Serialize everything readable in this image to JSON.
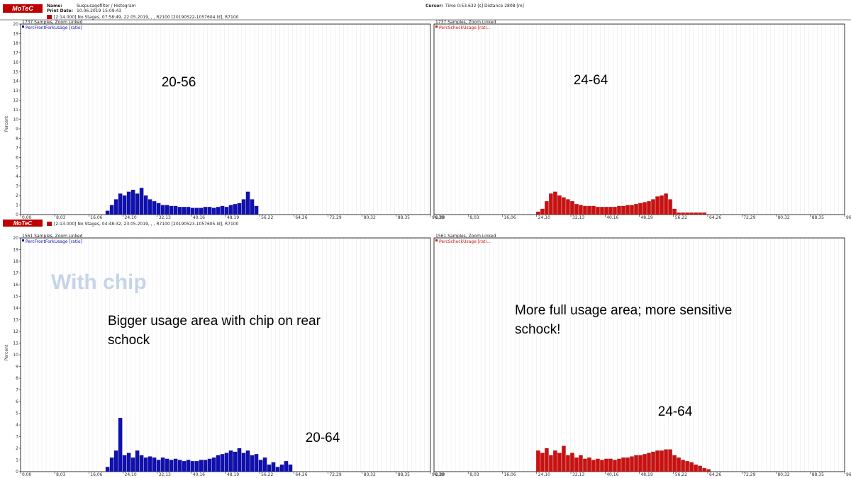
{
  "header": {
    "logo": "MoTeC",
    "name_label": "Name:",
    "name_value": "Suspusagefilter / Histogram",
    "print_label": "Print Date:",
    "print_value": "10.06.2019 15:09:43",
    "cursor_label": "Cursor:",
    "cursor_value": "Time  0:53.632 [s]   Distance  2808 [m]",
    "session_top": "[2:14.000] No Stages, 07:58:49, 22.05.2019, , , R2100 [20190522-1057604.ld], R7100",
    "session_bottom": "[2:13.000] No Stages, 04:48:32, 23.05.2019, , , R7100 [20190523-1057605.ld], R7100"
  },
  "ylabel": "Percent",
  "colors": {
    "front": "#1010b0",
    "rear": "#cc1010",
    "watermark": "#c6d4ea"
  },
  "annotations": {
    "top_left": "20-56",
    "top_right": "24-64",
    "watermark": "With chip",
    "bottom_left_note": [
      "Bigger usage area with chip on rear",
      "schock"
    ],
    "bottom_left_range": "20-64",
    "bottom_right_note": [
      "More full usage area; more sensitive",
      "schock!"
    ],
    "bottom_right_range": "24-64"
  },
  "chart_data": [
    {
      "type": "bar",
      "samples_note": "1737 Samples, Zoom Linked",
      "series": [
        {
          "name": "PercFrontForkUsage [ratio]",
          "color": "#1010b0",
          "x": [
            20,
            21,
            22,
            23,
            24,
            25,
            26,
            27,
            28,
            29,
            30,
            31,
            32,
            33,
            34,
            35,
            36,
            37,
            38,
            39,
            40,
            41,
            42,
            43,
            44,
            45,
            46,
            47,
            48,
            49,
            50,
            51,
            52,
            53,
            54,
            55
          ],
          "values": [
            0.4,
            1.0,
            1.6,
            2.2,
            2.0,
            2.4,
            2.6,
            2.2,
            2.8,
            2.0,
            1.6,
            1.4,
            1.2,
            1.0,
            1.0,
            0.9,
            0.9,
            0.8,
            0.8,
            0.8,
            0.7,
            0.7,
            0.7,
            0.8,
            0.8,
            0.7,
            0.8,
            0.9,
            0.8,
            1.0,
            1.1,
            1.2,
            1.6,
            2.4,
            1.6,
            0.9
          ]
        }
      ],
      "xticks": [
        "0,00",
        "8,03",
        "16,06",
        "24,10",
        "32,13",
        "40,16",
        "48,19",
        "56,22",
        "64,26",
        "72,29",
        "80,32",
        "88,35",
        "96,39"
      ],
      "ylim": [
        0,
        20
      ]
    },
    {
      "type": "bar",
      "samples_note": "1737 Samples, Zoom Linked",
      "series": [
        {
          "name": "PercSchockUsage [rati...",
          "color": "#cc1010",
          "x": [
            24,
            25,
            26,
            27,
            28,
            29,
            30,
            31,
            32,
            33,
            34,
            35,
            36,
            37,
            38,
            39,
            40,
            41,
            42,
            43,
            44,
            45,
            46,
            47,
            48,
            49,
            50,
            51,
            52,
            53,
            54,
            55,
            56,
            57,
            58,
            59,
            60,
            61,
            62,
            63
          ],
          "values": [
            0.3,
            0.6,
            1.4,
            2.2,
            2.4,
            2.0,
            1.8,
            1.6,
            1.4,
            1.1,
            1.0,
            0.9,
            0.9,
            0.9,
            0.8,
            0.8,
            0.8,
            0.8,
            0.8,
            0.9,
            0.9,
            1.0,
            1.0,
            1.1,
            1.2,
            1.3,
            1.4,
            1.6,
            1.9,
            2.0,
            2.2,
            1.6,
            0.6,
            0.2,
            0.2,
            0.2,
            0.2,
            0.2,
            0.2,
            0.2
          ]
        }
      ],
      "xticks": [
        "0,00",
        "8,03",
        "16,06",
        "24,10",
        "32,13",
        "40,16",
        "48,19",
        "56,22",
        "64,26",
        "72,29",
        "80,32",
        "88,35",
        "96,39"
      ],
      "ylim": [
        0,
        20
      ]
    },
    {
      "type": "bar",
      "samples_note": "1561 Samples, Zoom Linked",
      "series": [
        {
          "name": "PercFrontForkUsage [ratio]",
          "color": "#1010b0",
          "x": [
            20,
            21,
            22,
            23,
            24,
            25,
            26,
            27,
            28,
            29,
            30,
            31,
            32,
            33,
            34,
            35,
            36,
            37,
            38,
            39,
            40,
            41,
            42,
            43,
            44,
            45,
            46,
            47,
            48,
            49,
            50,
            51,
            52,
            53,
            54,
            55,
            56,
            57,
            58,
            59,
            60,
            61,
            62,
            63
          ],
          "values": [
            0.4,
            1.2,
            1.8,
            4.6,
            1.4,
            1.6,
            1.2,
            1.8,
            1.4,
            1.2,
            1.3,
            1.2,
            1.0,
            1.2,
            1.1,
            1.0,
            1.1,
            1.0,
            0.9,
            1.0,
            0.9,
            0.9,
            1.0,
            1.0,
            1.1,
            1.2,
            1.4,
            1.5,
            1.6,
            1.8,
            1.7,
            2.0,
            1.6,
            1.8,
            1.4,
            1.5,
            1.0,
            1.2,
            0.6,
            0.8,
            0.4,
            0.6,
            0.9,
            0.6
          ]
        }
      ],
      "xticks": [
        "0,00",
        "8,03",
        "16,06",
        "24,10",
        "32,13",
        "40,16",
        "48,19",
        "56,22",
        "64,26",
        "72,29",
        "80,32",
        "88,35",
        "96,39"
      ],
      "ylim": [
        0,
        20
      ]
    },
    {
      "type": "bar",
      "samples_note": "1561 Samples, Zoom Linked",
      "series": [
        {
          "name": "PercSchockUsage [rati...",
          "color": "#cc1010",
          "x": [
            24,
            25,
            26,
            27,
            28,
            29,
            30,
            31,
            32,
            33,
            34,
            35,
            36,
            37,
            38,
            39,
            40,
            41,
            42,
            43,
            44,
            45,
            46,
            47,
            48,
            49,
            50,
            51,
            52,
            53,
            54,
            55,
            56,
            57,
            58,
            59,
            60,
            61,
            62,
            63,
            64
          ],
          "values": [
            1.8,
            1.6,
            2.0,
            1.4,
            1.8,
            1.6,
            2.2,
            1.4,
            1.6,
            1.2,
            1.4,
            1.1,
            1.2,
            1.0,
            1.1,
            1.0,
            1.1,
            1.1,
            1.0,
            1.1,
            1.2,
            1.2,
            1.3,
            1.4,
            1.4,
            1.5,
            1.6,
            1.7,
            1.8,
            1.8,
            1.9,
            1.9,
            1.4,
            1.2,
            1.0,
            0.9,
            0.8,
            0.6,
            0.5,
            0.3,
            0.2
          ]
        }
      ],
      "xticks": [
        "0,00",
        "8,03",
        "16,06",
        "24,10",
        "32,13",
        "40,16",
        "48,19",
        "56,22",
        "64,26",
        "72,29",
        "80,32",
        "88,35",
        "96,39"
      ],
      "ylim": [
        0,
        20
      ]
    }
  ]
}
